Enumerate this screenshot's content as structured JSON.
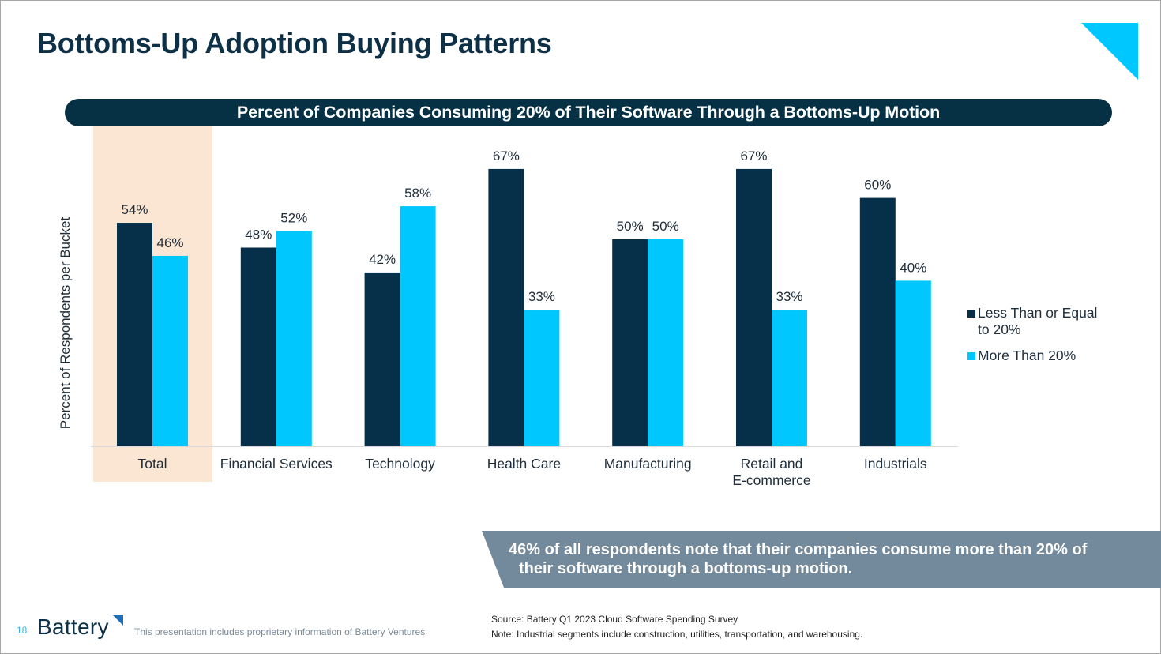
{
  "slide": {
    "title": "Bottoms-Up Adoption Buying Patterns",
    "page_number": "18",
    "logo_text": "Battery",
    "proprietary_note": "This presentation includes proprietary information of Battery Ventures",
    "source": "Source: Battery Q1 2023 Cloud Software Spending Survey",
    "note": "Note: Industrial segments include construction, utilities, transportation, and warehousing.",
    "callout_line1": "46% of all respondents note that their companies consume more than 20% of",
    "callout_line2": "their software through a bottoms-up motion.",
    "colors": {
      "title": "#0d3047",
      "banner": "#063145",
      "accent": "#00c8ff",
      "highlight": "#fbe5d3",
      "callout": "#738a9c"
    },
    "icons": {
      "corner": "triangle-corner-icon",
      "logo_mark": "triangle-logo-icon"
    }
  },
  "chart_data": {
    "type": "bar",
    "title": "Percent of Companies Consuming 20% of Their Software Through a Bottoms-Up Motion",
    "xlabel": "",
    "ylabel": "Percent of Respondents per Bucket",
    "ylim": [
      0,
      70
    ],
    "grid": false,
    "legend_position": "right",
    "highlighted_category": "Total",
    "categories": [
      "Total",
      "Financial Services",
      "Technology",
      "Health Care",
      "Manufacturing",
      "Retail and\nE-commerce",
      "Industrials"
    ],
    "category_lines": [
      [
        "Total"
      ],
      [
        "Financial Services"
      ],
      [
        "Technology"
      ],
      [
        "Health Care"
      ],
      [
        "Manufacturing"
      ],
      [
        "Retail and",
        "E-commerce"
      ],
      [
        "Industrials"
      ]
    ],
    "series": [
      {
        "name": "Less Than or Equal to 20%",
        "color": "#06304a",
        "values": [
          54,
          48,
          42,
          67,
          50,
          67,
          60
        ],
        "labels": [
          "54%",
          "48%",
          "42%",
          "67%",
          "50%",
          "67%",
          "60%"
        ]
      },
      {
        "name": "More Than 20%",
        "color": "#00c8ff",
        "values": [
          46,
          52,
          58,
          33,
          50,
          33,
          40
        ],
        "labels": [
          "46%",
          "52%",
          "58%",
          "33%",
          "50%",
          "33%",
          "40%"
        ]
      }
    ]
  }
}
